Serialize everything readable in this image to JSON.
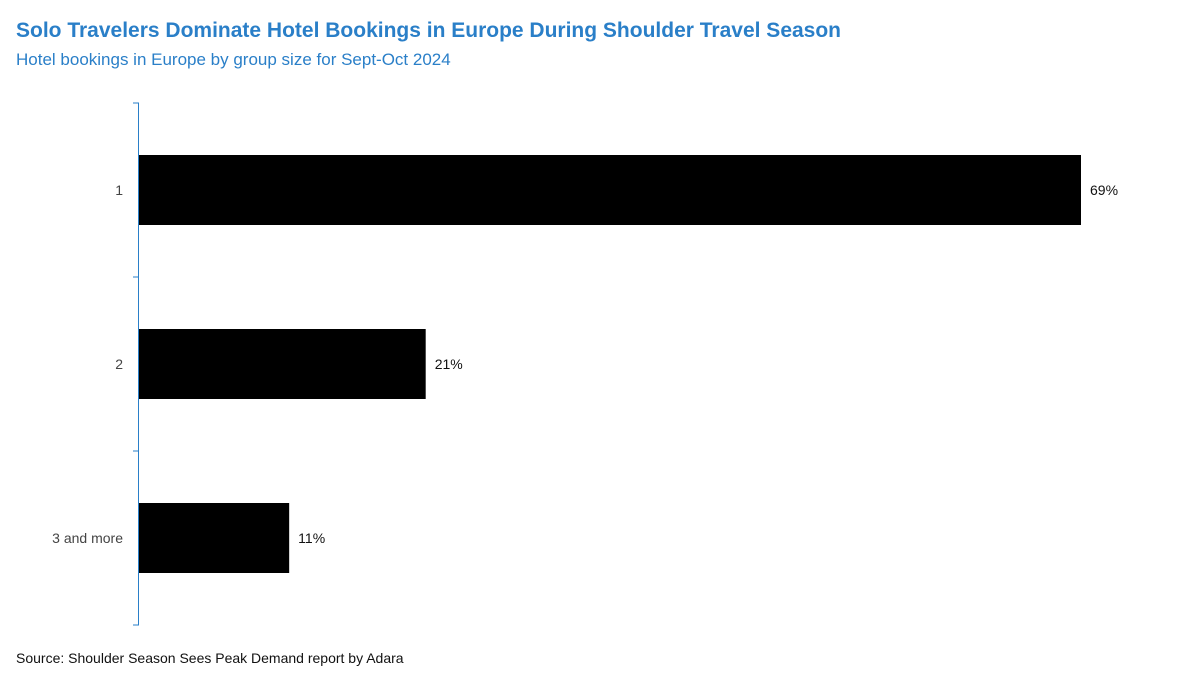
{
  "title": "Solo Travelers Dominate Hotel Bookings in Europe During Shoulder Travel Season",
  "subtitle": "Hotel bookings in Europe by group size for Sept-Oct 2024",
  "source": "Source: Shoulder Season Sees Peak Demand report by Adara",
  "colors": {
    "title": "#2a7fc8",
    "axis": "#2a7fc8",
    "bar": "#000000"
  },
  "chart_data": {
    "type": "bar",
    "orientation": "horizontal",
    "title": "Solo Travelers Dominate Hotel Bookings in Europe During Shoulder Travel Season",
    "subtitle": "Hotel bookings in Europe by group size for Sept-Oct 2024",
    "categories": [
      "1",
      "2",
      "3 and more"
    ],
    "values": [
      69,
      21,
      11
    ],
    "value_labels": [
      "69%",
      "21%",
      "11%"
    ],
    "unit": "%",
    "xlim": [
      0,
      69
    ],
    "xlabel": "",
    "ylabel": "",
    "grid": false,
    "legend": "none"
  }
}
